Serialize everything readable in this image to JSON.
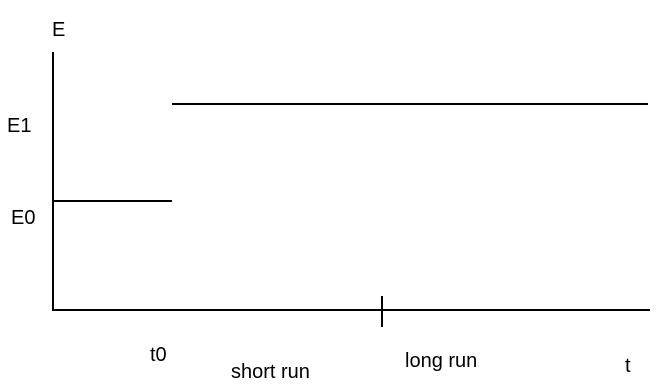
{
  "chart_data": {
    "type": "line",
    "ylabel": "E",
    "xlabel": "t",
    "x_ticks": {
      "t0": "t0"
    },
    "y_ticks": {
      "E0": "E0",
      "E1": "E1"
    },
    "regions": [
      "short run",
      "long run"
    ],
    "series": [
      {
        "segments": [
          {
            "x": [
              "start",
              "t0"
            ],
            "y": [
              "E0",
              "E0"
            ]
          },
          {
            "x": [
              "t0",
              "end"
            ],
            "y": [
              "E1",
              "E1"
            ]
          }
        ]
      }
    ],
    "divider": "between short run and long run",
    "grid": false,
    "legend": "none"
  }
}
